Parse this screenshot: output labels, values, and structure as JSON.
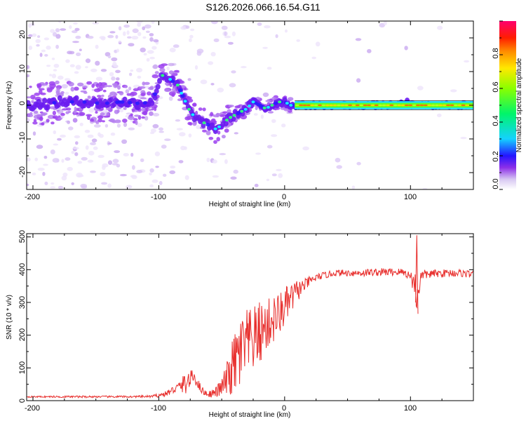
{
  "title": "S126.2026.066.16.54.G11",
  "chart_data": [
    {
      "type": "heatmap",
      "xlabel": "Height of straight line (km)",
      "ylabel": "Frequency (Hz)",
      "xlim": [
        -205,
        150
      ],
      "ylim": [
        -25,
        25
      ],
      "xticks": [
        -200,
        -100,
        0,
        100
      ],
      "yticks": [
        -20,
        -10,
        0,
        10,
        20
      ],
      "colorbar": {
        "label": "Normalized spectral amplitude",
        "range": [
          0,
          1
        ],
        "ticks": [
          "0.0",
          "0.2",
          "0.4",
          "0.6",
          "0.8"
        ]
      },
      "ridge": {
        "x": [
          -205,
          -190,
          -175,
          -160,
          -145,
          -130,
          -115,
          -105,
          -98,
          -92,
          -85,
          -80,
          -75,
          -70,
          -65,
          -60,
          -55,
          -50,
          -45,
          -40,
          -35,
          -30,
          -25,
          -20,
          -15,
          -10,
          -5,
          0,
          5,
          10,
          30,
          50,
          70,
          90,
          97,
          100,
          120,
          150
        ],
        "freq": [
          0,
          0.5,
          1,
          1,
          0.5,
          1,
          0.5,
          1,
          9,
          8,
          6,
          2,
          -2,
          -4,
          -5,
          -6,
          -7,
          -6,
          -4,
          -3,
          -2,
          -1,
          1,
          0,
          -1,
          0,
          1,
          1,
          0,
          0,
          0,
          0,
          0,
          0,
          1,
          0,
          0,
          0
        ]
      }
    },
    {
      "type": "line",
      "xlabel": "Height of straight line (km)",
      "ylabel": "SNR (10 * v/v)",
      "xlim": [
        -205,
        150
      ],
      "ylim": [
        0,
        510
      ],
      "xticks": [
        -200,
        -100,
        0,
        100
      ],
      "yticks": [
        0,
        100,
        200,
        300,
        400,
        500
      ],
      "series": [
        {
          "name": "SNR",
          "color": "#e8302e",
          "x": [
            -205,
            -180,
            -150,
            -120,
            -105,
            -95,
            -85,
            -78,
            -72,
            -68,
            -64,
            -60,
            -55,
            -50,
            -45,
            -40,
            -35,
            -30,
            -25,
            -20,
            -15,
            -10,
            -5,
            0,
            5,
            10,
            15,
            20,
            25,
            30,
            35,
            40,
            50,
            60,
            70,
            80,
            90,
            95,
            100,
            103,
            105,
            107,
            110,
            120,
            130,
            140,
            150
          ],
          "values": [
            12,
            12,
            12,
            12,
            13,
            20,
            40,
            55,
            75,
            45,
            25,
            20,
            25,
            40,
            70,
            110,
            145,
            170,
            185,
            205,
            225,
            245,
            260,
            285,
            310,
            335,
            350,
            365,
            375,
            382,
            385,
            390,
            390,
            390,
            392,
            393,
            393,
            392,
            380,
            360,
            320,
            360,
            385,
            388,
            390,
            390,
            385
          ],
          "noise": [
            2,
            3,
            3,
            3,
            4,
            8,
            15,
            35,
            20,
            15,
            10,
            10,
            15,
            30,
            60,
            100,
            120,
            110,
            100,
            100,
            80,
            80,
            70,
            60,
            50,
            35,
            20,
            15,
            12,
            10,
            10,
            10,
            10,
            12,
            12,
            12,
            12,
            12,
            15,
            40,
            80,
            40,
            15,
            12,
            12,
            12,
            12
          ]
        }
      ]
    }
  ]
}
